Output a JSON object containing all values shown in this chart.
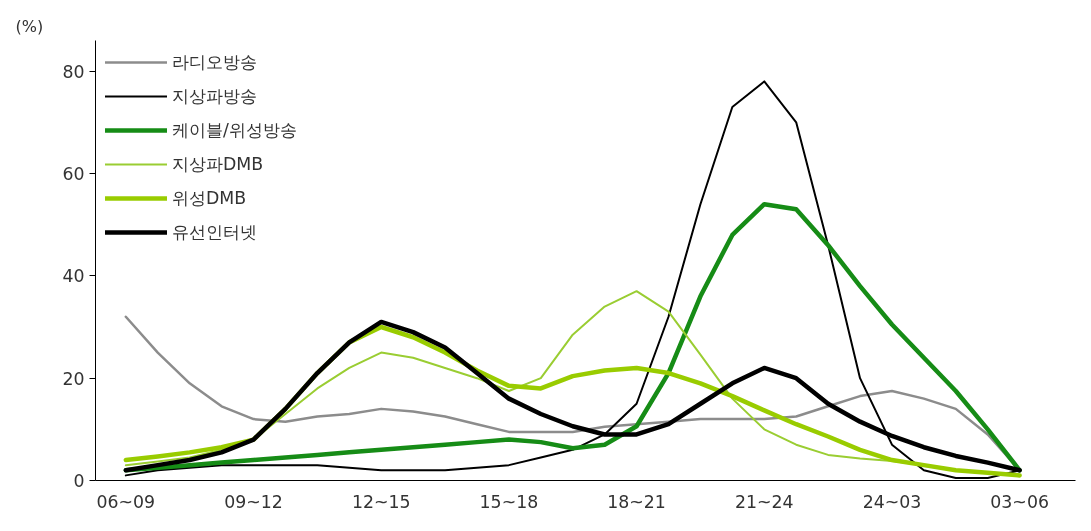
{
  "chart_data": {
    "type": "line",
    "ylabel": "(%)",
    "categories": [
      "06~09",
      null,
      null,
      null,
      "09~12",
      null,
      null,
      null,
      "12~15",
      null,
      null,
      null,
      "15~18",
      null,
      null,
      null,
      "18~21",
      null,
      null,
      null,
      "21~24",
      null,
      null,
      null,
      "24~03",
      null,
      null,
      null,
      "03~06"
    ],
    "ylim": [
      0,
      86
    ],
    "yticks": [
      0,
      20,
      40,
      60,
      80
    ],
    "grid": false,
    "legend": "top left",
    "line_style": "solid",
    "marker": "none",
    "series": [
      {
        "name": "라디오방송",
        "color": "#8c8c8c",
        "values": [
          32,
          25,
          19,
          14.5,
          12,
          11.5,
          12.5,
          13,
          14,
          13.5,
          12.5,
          11,
          9.5,
          9.5,
          9.5,
          10.5,
          11,
          11.5,
          12,
          12,
          12,
          12.5,
          14.5,
          16.5,
          17.5,
          16,
          14,
          9,
          2
        ]
      },
      {
        "name": "지상파방송",
        "color": "#000000",
        "values": [
          1,
          2,
          2.5,
          3,
          3,
          3,
          3,
          2.5,
          2,
          2,
          2,
          2.5,
          3,
          4.5,
          6,
          9,
          15,
          32,
          54,
          73,
          78,
          70,
          46,
          20,
          7,
          2,
          0.5,
          0.5,
          2
        ]
      },
      {
        "name": "케이블/위성방송",
        "color": "#168c16",
        "values": [
          2,
          2.5,
          3,
          3.5,
          4,
          4.5,
          5,
          5.5,
          6,
          6.5,
          7,
          7.5,
          8,
          7.5,
          6.3,
          7,
          10.6,
          21,
          36,
          48,
          54,
          53,
          46,
          38,
          30.5,
          24,
          17.5,
          10,
          2
        ]
      },
      {
        "name": "지상파DMB",
        "color": "#9acd32",
        "values": [
          3,
          3.7,
          4.5,
          6,
          8,
          13,
          18,
          22,
          25,
          24,
          22,
          20,
          17.5,
          20,
          28.5,
          34,
          37,
          33,
          24.6,
          16,
          10,
          7,
          5,
          4.3,
          3.8,
          3,
          2,
          1.5,
          1
        ]
      },
      {
        "name": "위성DMB",
        "color": "#99cc00",
        "values": [
          4,
          4.7,
          5.5,
          6.5,
          8,
          14,
          21,
          27,
          30,
          28,
          25,
          21.5,
          18.5,
          18,
          20.4,
          21.5,
          22,
          21,
          19,
          16.5,
          13.7,
          11,
          8.6,
          6,
          4,
          3,
          2,
          1.5,
          1
        ]
      },
      {
        "name": "유선인터넷",
        "color": "#000000",
        "values": [
          2,
          3,
          4,
          5.5,
          8,
          14,
          21,
          27,
          31,
          29,
          26,
          21,
          16,
          13,
          10.6,
          9,
          9,
          11,
          15,
          19,
          22,
          20,
          15,
          11.5,
          8.7,
          6.5,
          4.8,
          3.5,
          2
        ]
      }
    ]
  }
}
